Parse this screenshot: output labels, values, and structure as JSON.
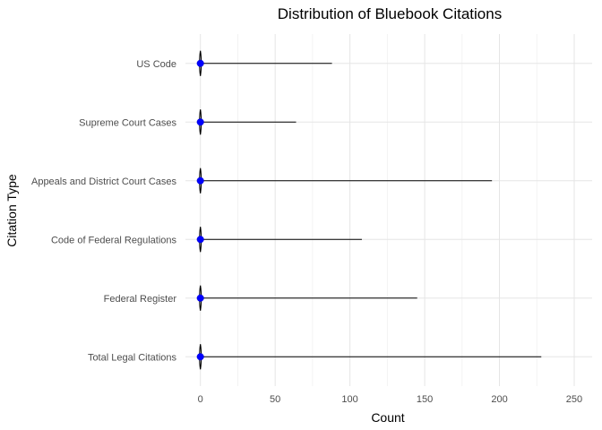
{
  "chart_data": {
    "type": "box",
    "title": "Distribution of Bluebook Citations",
    "xlabel": "Count",
    "ylabel": "Citation Type",
    "xlim": [
      -10,
      262
    ],
    "x_ticks": [
      0,
      50,
      100,
      150,
      200,
      250
    ],
    "grid": true,
    "legend": "none",
    "point_color": "#0000ff",
    "categories": [
      "US Code",
      "Supreme Court Cases",
      "Appeals and District Court Cases",
      "Code of Federal Regulations",
      "Federal Register",
      "Total Legal Citations"
    ],
    "series": [
      {
        "category": "US Code",
        "min": 0,
        "median": 0,
        "max": 88
      },
      {
        "category": "Supreme Court Cases",
        "min": 0,
        "median": 0,
        "max": 64
      },
      {
        "category": "Appeals and District Court Cases",
        "min": 0,
        "median": 0,
        "max": 195
      },
      {
        "category": "Code of Federal Regulations",
        "min": 0,
        "median": 0,
        "max": 108
      },
      {
        "category": "Federal Register",
        "min": 0,
        "median": 0,
        "max": 145
      },
      {
        "category": "Total Legal Citations",
        "min": 0,
        "median": 0,
        "max": 228
      }
    ]
  }
}
